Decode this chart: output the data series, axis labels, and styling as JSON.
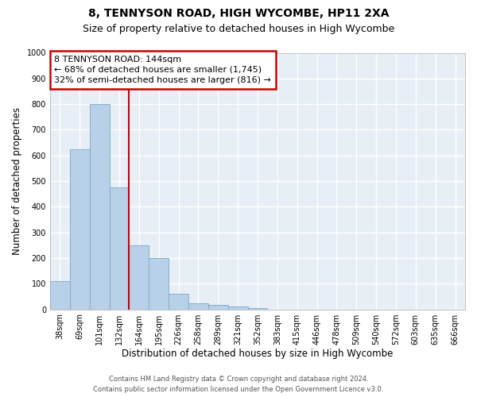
{
  "title1": "8, TENNYSON ROAD, HIGH WYCOMBE, HP11 2XA",
  "title2": "Size of property relative to detached houses in High Wycombe",
  "xlabel": "Distribution of detached houses by size in High Wycombe",
  "ylabel": "Number of detached properties",
  "categories": [
    "38sqm",
    "69sqm",
    "101sqm",
    "132sqm",
    "164sqm",
    "195sqm",
    "226sqm",
    "258sqm",
    "289sqm",
    "321sqm",
    "352sqm",
    "383sqm",
    "415sqm",
    "446sqm",
    "478sqm",
    "509sqm",
    "540sqm",
    "572sqm",
    "603sqm",
    "635sqm",
    "666sqm"
  ],
  "values": [
    110,
    625,
    800,
    475,
    248,
    200,
    62,
    25,
    17,
    10,
    5,
    0,
    0,
    0,
    0,
    0,
    0,
    0,
    0,
    0,
    0
  ],
  "bar_color": "#b8d0e8",
  "bar_edge_color": "#7aaacb",
  "vline_x_index": 3,
  "vline_color": "#cc0000",
  "annotation_line1": "8 TENNYSON ROAD: 144sqm",
  "annotation_line2": "← 68% of detached houses are smaller (1,745)",
  "annotation_line3": "32% of semi-detached houses are larger (816) →",
  "annotation_box_color": "#cc0000",
  "ylim": [
    0,
    1000
  ],
  "yticks": [
    0,
    100,
    200,
    300,
    400,
    500,
    600,
    700,
    800,
    900,
    1000
  ],
  "background_color": "#e8eef6",
  "grid_color": "#ffffff",
  "footnote1": "Contains HM Land Registry data © Crown copyright and database right 2024.",
  "footnote2": "Contains public sector information licensed under the Open Government Licence v3.0.",
  "title1_fontsize": 10,
  "title2_fontsize": 9,
  "xlabel_fontsize": 8.5,
  "ylabel_fontsize": 8.5,
  "tick_fontsize": 7,
  "annotation_fontsize": 8,
  "footnote_fontsize": 6
}
